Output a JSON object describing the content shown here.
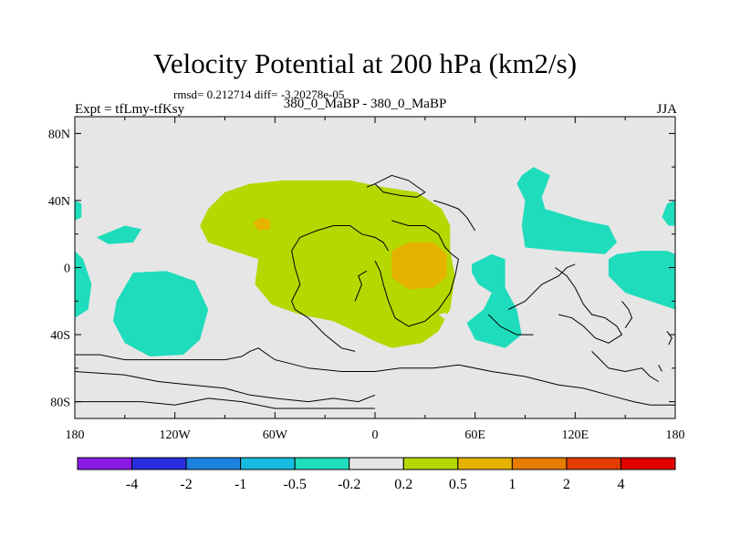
{
  "chart_data": {
    "type": "heatmap",
    "title": "Velocity Potential at 200 hPa (km2/s)",
    "stats_line": "rmsd= 0.212714 diff= -3.20278e-05",
    "left_subtitle": "Expt = tfLmy-tfKsy",
    "center_subtitle": "380_0_MaBP - 380_0_MaBP",
    "right_subtitle": "JJA",
    "xlim": [
      -180,
      180
    ],
    "ylim": [
      -90,
      90
    ],
    "x_ticks": [
      -180,
      -120,
      -60,
      0,
      60,
      120,
      180
    ],
    "x_tick_labels": [
      "180",
      "120W",
      "60W",
      "0",
      "60E",
      "120E",
      "180"
    ],
    "y_ticks": [
      80,
      40,
      0,
      -40,
      -80
    ],
    "y_tick_labels": [
      "80N",
      "40N",
      "0",
      "40S",
      "80S"
    ],
    "colorbar": {
      "colors": [
        "#8a1ae6",
        "#2a2ee0",
        "#1c84e0",
        "#18bce0",
        "#1fdcbc",
        "#e6e6e6",
        "#b4d800",
        "#e6b200",
        "#e67c00",
        "#e43c00",
        "#e00000"
      ],
      "labels": [
        "-4",
        "-2",
        "-1",
        "-0.5",
        "-0.2",
        "0.2",
        "0.5",
        "1",
        "2",
        "4"
      ]
    },
    "regions": [
      {
        "name": "positive-anomaly-center",
        "level": "0.2 to 0.5",
        "color": "#b4d800",
        "polygon": [
          [
            -100,
            35
          ],
          [
            -90,
            45
          ],
          [
            -75,
            50
          ],
          [
            -55,
            52
          ],
          [
            -35,
            52
          ],
          [
            -15,
            52
          ],
          [
            5,
            48
          ],
          [
            25,
            45
          ],
          [
            40,
            35
          ],
          [
            45,
            25
          ],
          [
            45,
            10
          ],
          [
            48,
            -5
          ],
          [
            45,
            -25
          ],
          [
            38,
            -38
          ],
          [
            28,
            -45
          ],
          [
            10,
            -48
          ],
          [
            0,
            -44
          ],
          [
            -12,
            -38
          ],
          [
            -25,
            -32
          ],
          [
            -45,
            -28
          ],
          [
            -62,
            -22
          ],
          [
            -72,
            -10
          ],
          [
            -70,
            5
          ],
          [
            -85,
            10
          ],
          [
            -100,
            15
          ],
          [
            -105,
            25
          ]
        ]
      },
      {
        "name": "core-anomaly-atlantic",
        "level": "0.5 to 1",
        "color": "#e6b200",
        "polygon": [
          [
            -73,
            27
          ],
          [
            -68,
            30
          ],
          [
            -63,
            28
          ],
          [
            -63,
            23
          ],
          [
            -70,
            22
          ]
        ]
      },
      {
        "name": "core-anomaly-africa",
        "level": "0.5 to 1",
        "color": "#e6b200",
        "polygon": [
          [
            10,
            10
          ],
          [
            20,
            15
          ],
          [
            35,
            15
          ],
          [
            43,
            8
          ],
          [
            43,
            -5
          ],
          [
            35,
            -12
          ],
          [
            20,
            -13
          ],
          [
            10,
            -6
          ]
        ]
      },
      {
        "name": "negative-anomaly-south-pacific",
        "level": "-0.5 to -0.2",
        "color": "#1fdcbc",
        "polygon": [
          [
            -155,
            -20
          ],
          [
            -145,
            -3
          ],
          [
            -125,
            -2
          ],
          [
            -108,
            -8
          ],
          [
            -100,
            -25
          ],
          [
            -105,
            -43
          ],
          [
            -115,
            -52
          ],
          [
            -135,
            -53
          ],
          [
            -150,
            -45
          ],
          [
            -157,
            -32
          ]
        ]
      },
      {
        "name": "negative-anomaly-west-edge-1",
        "level": "-0.5 to -0.2",
        "color": "#1fdcbc",
        "polygon": [
          [
            -180,
            40
          ],
          [
            -176,
            38
          ],
          [
            -176,
            30
          ],
          [
            -180,
            28
          ]
        ]
      },
      {
        "name": "negative-anomaly-west-edge-2",
        "level": "-0.5 to -0.2",
        "color": "#1fdcbc",
        "polygon": [
          [
            -180,
            10
          ],
          [
            -175,
            5
          ],
          [
            -170,
            -10
          ],
          [
            -172,
            -25
          ],
          [
            -180,
            -30
          ]
        ]
      },
      {
        "name": "negative-anomaly-north-pacific",
        "level": "-0.5 to -0.2",
        "color": "#1fdcbc",
        "polygon": [
          [
            -167,
            18
          ],
          [
            -150,
            25
          ],
          [
            -140,
            23
          ],
          [
            -145,
            15
          ],
          [
            -160,
            14
          ]
        ]
      },
      {
        "name": "negative-anomaly-indian-ocean",
        "level": "-0.5 to -0.2",
        "color": "#1fdcbc",
        "polygon": [
          [
            58,
            2
          ],
          [
            70,
            8
          ],
          [
            78,
            5
          ],
          [
            78,
            -12
          ],
          [
            85,
            -25
          ],
          [
            88,
            -40
          ],
          [
            78,
            -48
          ],
          [
            60,
            -43
          ],
          [
            55,
            -33
          ],
          [
            65,
            -25
          ],
          [
            70,
            -15
          ],
          [
            62,
            -10
          ],
          [
            58,
            -3
          ]
        ]
      },
      {
        "name": "negative-anomaly-east-asia",
        "level": "-0.5 to -0.2",
        "color": "#1fdcbc",
        "polygon": [
          [
            88,
            55
          ],
          [
            95,
            60
          ],
          [
            105,
            55
          ],
          [
            100,
            42
          ],
          [
            102,
            35
          ],
          [
            125,
            28
          ],
          [
            140,
            25
          ],
          [
            145,
            15
          ],
          [
            138,
            8
          ],
          [
            110,
            10
          ],
          [
            90,
            12
          ],
          [
            88,
            25
          ],
          [
            90,
            40
          ],
          [
            85,
            50
          ]
        ]
      },
      {
        "name": "negative-anomaly-east-pacific",
        "level": "-0.5 to -0.2",
        "color": "#1fdcbc",
        "polygon": [
          [
            140,
            5
          ],
          [
            145,
            8
          ],
          [
            160,
            10
          ],
          [
            175,
            10
          ],
          [
            180,
            8
          ],
          [
            180,
            -25
          ],
          [
            165,
            -20
          ],
          [
            150,
            -15
          ],
          [
            140,
            -5
          ]
        ]
      },
      {
        "name": "negative-anomaly-east-edge",
        "level": "-0.5 to -0.2",
        "color": "#1fdcbc",
        "polygon": [
          [
            180,
            40
          ],
          [
            175,
            38
          ],
          [
            172,
            30
          ],
          [
            176,
            25
          ],
          [
            180,
            25
          ]
        ]
      },
      {
        "name": "neutral-hole",
        "level": "-0.2 to 0.2",
        "color": "#e6e6e6",
        "polygon": [
          [
            38,
            -28
          ],
          [
            42,
            -27
          ],
          [
            46,
            -29
          ],
          [
            42,
            -31
          ]
        ]
      }
    ],
    "coastlines": [
      [
        [
          -180,
          -52
        ],
        [
          -165,
          -52
        ],
        [
          -150,
          -55
        ],
        [
          -130,
          -55
        ],
        [
          -110,
          -55
        ],
        [
          -90,
          -55
        ],
        [
          -80,
          -53
        ],
        [
          -75,
          -50
        ],
        [
          -70,
          -48
        ],
        [
          -60,
          -55
        ],
        [
          -40,
          -60
        ],
        [
          -20,
          -62
        ],
        [
          0,
          -62
        ],
        [
          15,
          -60
        ],
        [
          35,
          -60
        ],
        [
          50,
          -58
        ],
        [
          70,
          -62
        ],
        [
          90,
          -65
        ],
        [
          110,
          -70
        ],
        [
          125,
          -72
        ],
        [
          140,
          -76
        ],
        [
          155,
          -80
        ],
        [
          165,
          -82
        ],
        [
          180,
          -82
        ]
      ],
      [
        [
          -180,
          -62
        ],
        [
          -150,
          -64
        ],
        [
          -130,
          -68
        ],
        [
          -110,
          -70
        ],
        [
          -90,
          -72
        ],
        [
          -75,
          -76
        ],
        [
          -60,
          -78
        ],
        [
          -40,
          -80
        ],
        [
          -25,
          -78
        ],
        [
          -10,
          -80
        ],
        [
          0,
          -76
        ]
      ],
      [
        [
          -180,
          -80
        ],
        [
          -160,
          -80
        ],
        [
          -140,
          -80
        ],
        [
          -120,
          -82
        ],
        [
          -110,
          -80
        ],
        [
          -100,
          -78
        ],
        [
          -80,
          -80
        ],
        [
          -60,
          -84
        ],
        [
          0,
          -84
        ]
      ],
      [
        [
          -50,
          10
        ],
        [
          -45,
          18
        ],
        [
          -35,
          22
        ],
        [
          -25,
          25
        ],
        [
          -15,
          25
        ],
        [
          -8,
          20
        ],
        [
          0,
          18
        ],
        [
          5,
          15
        ],
        [
          8,
          10
        ]
      ],
      [
        [
          -50,
          10
        ],
        [
          -48,
          0
        ],
        [
          -45,
          -10
        ],
        [
          -50,
          -20
        ],
        [
          -48,
          -25
        ],
        [
          -40,
          -30
        ],
        [
          -30,
          -40
        ],
        [
          -20,
          -48
        ],
        [
          -12,
          -50
        ]
      ],
      [
        [
          -5,
          48
        ],
        [
          0,
          50
        ],
        [
          5,
          45
        ],
        [
          15,
          43
        ],
        [
          25,
          42
        ],
        [
          30,
          45
        ],
        [
          20,
          52
        ],
        [
          10,
          55
        ],
        [
          0,
          50
        ]
      ],
      [
        [
          10,
          28
        ],
        [
          20,
          25
        ],
        [
          30,
          25
        ],
        [
          38,
          20
        ],
        [
          42,
          12
        ],
        [
          46,
          8
        ],
        [
          50,
          5
        ],
        [
          48,
          -5
        ],
        [
          45,
          -15
        ],
        [
          38,
          -25
        ],
        [
          30,
          -32
        ],
        [
          20,
          -35
        ],
        [
          12,
          -30
        ],
        [
          8,
          -20
        ],
        [
          5,
          -10
        ],
        [
          3,
          -2
        ],
        [
          0,
          4
        ]
      ],
      [
        [
          35,
          40
        ],
        [
          42,
          38
        ],
        [
          50,
          35
        ],
        [
          55,
          30
        ],
        [
          60,
          22
        ]
      ],
      [
        [
          80,
          -25
        ],
        [
          90,
          -20
        ],
        [
          100,
          -10
        ],
        [
          110,
          -5
        ],
        [
          115,
          0
        ],
        [
          120,
          2
        ]
      ],
      [
        [
          68,
          -28
        ],
        [
          75,
          -35
        ],
        [
          85,
          -40
        ],
        [
          95,
          -40
        ]
      ],
      [
        [
          108,
          0
        ],
        [
          115,
          -5
        ],
        [
          120,
          -12
        ],
        [
          125,
          -22
        ],
        [
          130,
          -28
        ],
        [
          138,
          -30
        ],
        [
          145,
          -35
        ],
        [
          148,
          -40
        ],
        [
          140,
          -45
        ],
        [
          132,
          -42
        ],
        [
          125,
          -35
        ],
        [
          118,
          -30
        ],
        [
          110,
          -28
        ]
      ],
      [
        [
          148,
          -20
        ],
        [
          152,
          -25
        ],
        [
          154,
          -30
        ],
        [
          150,
          -36
        ]
      ],
      [
        [
          130,
          -50
        ],
        [
          135,
          -55
        ],
        [
          140,
          -60
        ],
        [
          150,
          -62
        ],
        [
          160,
          -60
        ],
        [
          165,
          -65
        ],
        [
          170,
          -68
        ]
      ],
      [
        [
          -12,
          -20
        ],
        [
          -8,
          -10
        ],
        [
          -10,
          -5
        ],
        [
          -5,
          -2
        ]
      ],
      [
        [
          175,
          -38
        ],
        [
          178,
          -42
        ],
        [
          176,
          -46
        ]
      ],
      [
        [
          170,
          -58
        ],
        [
          172,
          -62
        ]
      ]
    ]
  }
}
